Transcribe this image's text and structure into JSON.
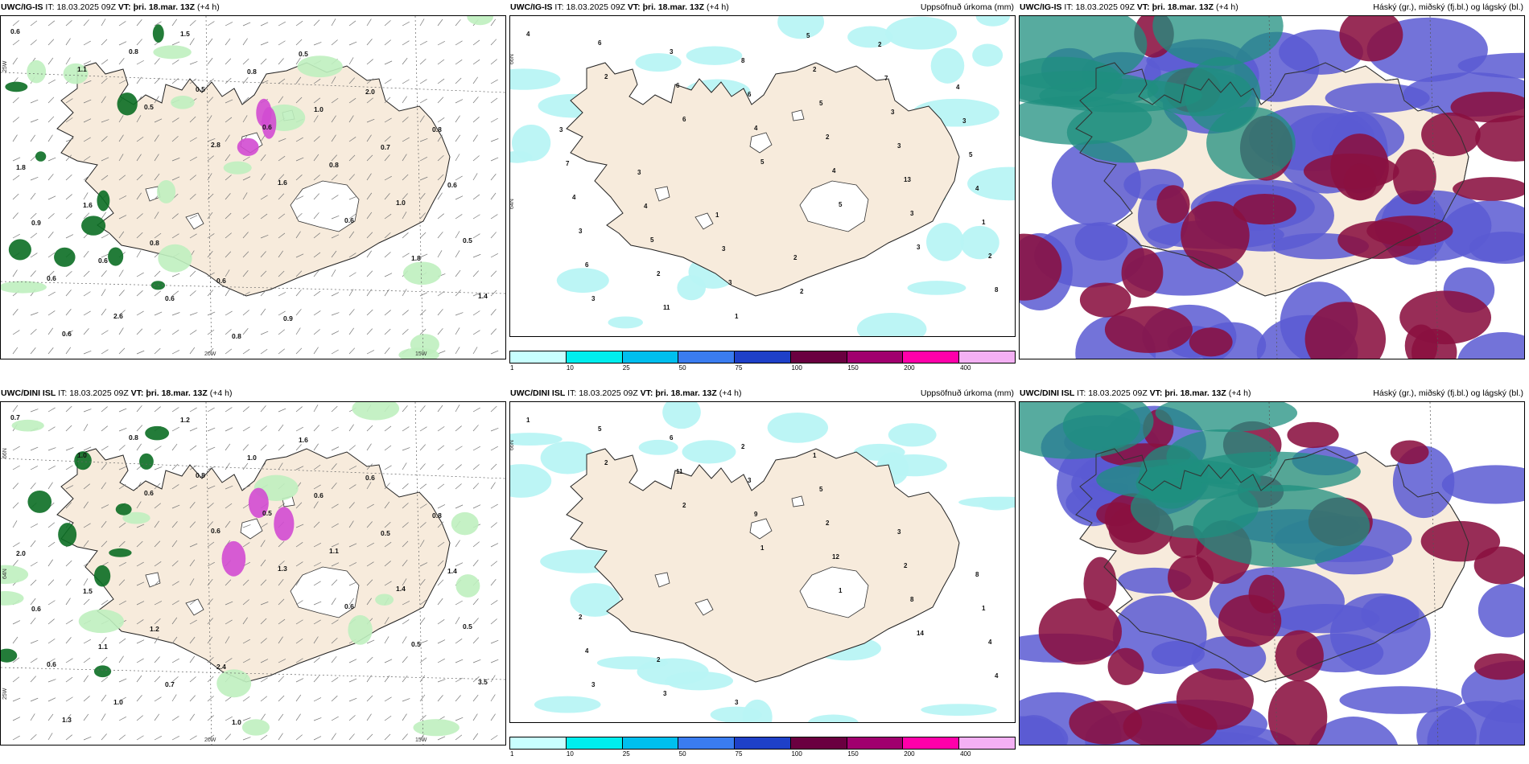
{
  "panels": [
    {
      "id": "ig-is-temp",
      "model": "UWC/IG-IS",
      "it_label": "IT:",
      "it_time": "18.03.2025 09Z",
      "vt_label": "VT:",
      "vt_time": "þri. 18.mar. 13Z",
      "lead": "(+4 h)",
      "title_right": "",
      "lon_labels": [
        "20W",
        "15W"
      ],
      "lat_labels": [
        "25W"
      ],
      "values": [
        "0.6",
        "1.1",
        "0.5",
        "2.8",
        "1.6",
        "0.6",
        "1.8",
        "1.4",
        "0.6",
        "0.8",
        "0.5",
        "0.6",
        "0.8",
        "1.0",
        "0.5",
        "0.6",
        "2.6",
        "1.5",
        "0.8",
        "1.0",
        "0.7",
        "0.6",
        "0.9",
        "0.6",
        "0.6",
        "0.8",
        "0.5",
        "2.0",
        "0.8",
        "1.8",
        "1.6",
        "0.8",
        "0.6",
        "0.9"
      ]
    },
    {
      "id": "ig-is-precip",
      "model": "UWC/IG-IS",
      "it_label": "IT:",
      "it_time": "18.03.2025 09Z",
      "vt_label": "VT:",
      "vt_time": "þri. 18.mar. 13Z",
      "lead": "(+4 h)",
      "title_right": "Uppsöfnuð úrkoma (mm)",
      "lat_labels": [
        "66N",
        "64N"
      ],
      "colorbar_ticks": [
        "1",
        "10",
        "25",
        "50",
        "75",
        "100",
        "150",
        "200",
        "400"
      ],
      "colorbar_colors": [
        "#c8ffff",
        "#00eeee",
        "#00bfee",
        "#3a7cf0",
        "#1e40c8",
        "#6a0040",
        "#a0006e",
        "#ff00aa",
        "#f4b0f4"
      ],
      "values": [
        "4",
        "2",
        "6",
        "5",
        "5",
        "3",
        "8",
        "6",
        "6",
        "4",
        "4",
        "3",
        "2",
        "3",
        "3",
        "6",
        "2",
        "13",
        "1",
        "6",
        "11",
        "8",
        "5",
        "3",
        "4",
        "3",
        "2",
        "1",
        "2",
        "3",
        "5",
        "4",
        "5",
        "3",
        "5",
        "7",
        "3",
        "7",
        "4",
        "3",
        "2",
        "2",
        "4",
        "3",
        "3",
        "1",
        "2"
      ]
    },
    {
      "id": "ig-is-clouds",
      "model": "UWC/IG-IS",
      "it_label": "IT:",
      "it_time": "18.03.2025 09Z",
      "vt_label": "VT:",
      "vt_time": "þri. 18.mar. 13Z",
      "lead": "(+4 h)",
      "title_right": "Háský (gr.), miðský (fj.bl.) og lágský (bl.)"
    },
    {
      "id": "dini-temp",
      "model": "UWC/DINI ISL",
      "it_label": "IT:",
      "it_time": "18.03.2025 09Z",
      "vt_label": "VT:",
      "vt_time": "þri. 18.mar. 13Z",
      "lead": "(+4 h)",
      "title_right": "",
      "lon_labels": [
        "20W",
        "15W"
      ],
      "lat_labels": [
        "66N",
        "64N",
        "25W"
      ],
      "values": [
        "0.7",
        "1.0",
        "0.6",
        "0.6",
        "1.3",
        "0.6",
        "0.5",
        "3.5",
        "1.3",
        "0.8",
        "0.8",
        "0.5",
        "1.1",
        "1.4",
        "0.5",
        "0.6",
        "1.0",
        "1.2",
        "1.0",
        "0.6",
        "0.5",
        "1.4",
        "0.6",
        "1.1",
        "0.7",
        "1.0",
        "1.6",
        "0.6",
        "0.8",
        "2.0",
        "1.5",
        "1.2",
        "2.4"
      ]
    },
    {
      "id": "dini-precip",
      "model": "UWC/DINI ISL",
      "it_label": "IT:",
      "it_time": "18.03.2025 09Z",
      "vt_label": "VT:",
      "vt_time": "þri. 18.mar. 13Z",
      "lead": "(+4 h)",
      "title_right": "Uppsöfnuð úrkoma (mm)",
      "lat_labels": [
        "66N"
      ],
      "colorbar_ticks": [
        "1",
        "10",
        "25",
        "50",
        "75",
        "100",
        "150",
        "200",
        "400"
      ],
      "colorbar_colors": [
        "#c8ffff",
        "#00eeee",
        "#00bfee",
        "#3a7cf0",
        "#1e40c8",
        "#6a0040",
        "#a0006e",
        "#ff00aa",
        "#f4b0f4"
      ],
      "values": [
        "1",
        "2",
        "2",
        "1",
        "1",
        "14",
        "4",
        "5",
        "11",
        "9",
        "12",
        "8",
        "4",
        "3",
        "6",
        "3",
        "2",
        "2",
        "1",
        "4",
        "3",
        "2",
        "5",
        "3",
        "8",
        "2",
        "2",
        "3",
        "1"
      ]
    },
    {
      "id": "dini-clouds",
      "model": "UWC/DINI ISL",
      "it_label": "IT:",
      "it_time": "18.03.2025 09Z",
      "vt_label": "VT:",
      "vt_time": "þri. 18.mar. 13Z",
      "lead": "(+4 h)",
      "title_right": "Háský (gr.), miðský (fj.bl.) og lágský (bl.)"
    }
  ],
  "colors": {
    "land": "#f7ebdc",
    "precip_light": "#b8f4f4",
    "green_dark": "#0b6e24",
    "green_light": "#bff0bf",
    "magenta": "#d24bd2",
    "cloud_high": "#1f8f7f",
    "cloud_mid": "#5a5ad2",
    "cloud_low": "#8a1040"
  }
}
